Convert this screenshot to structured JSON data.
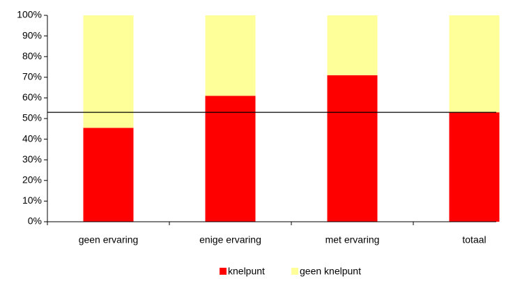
{
  "chart_data": {
    "type": "stacked_bar",
    "categories": [
      "geen ervaring",
      "enige ervaring",
      "met ervaring",
      "totaal"
    ],
    "series": [
      {
        "name": "knelpunt",
        "color": "#ff0000",
        "values": [
          45.5,
          61,
          71,
          53
        ]
      },
      {
        "name": "geen knelpunt",
        "color": "#ffff99",
        "values": [
          54.5,
          39,
          29,
          47
        ]
      }
    ],
    "reference_line": 53,
    "ylim": [
      0,
      100
    ],
    "yticks": [
      {
        "value": 0,
        "label": "0%"
      },
      {
        "value": 10,
        "label": "10%"
      },
      {
        "value": 20,
        "label": "20%"
      },
      {
        "value": 30,
        "label": "30%"
      },
      {
        "value": 40,
        "label": "40%"
      },
      {
        "value": 50,
        "label": "50%"
      },
      {
        "value": 60,
        "label": "60%"
      },
      {
        "value": 70,
        "label": "70%"
      },
      {
        "value": 80,
        "label": "80%"
      },
      {
        "value": 90,
        "label": "90%"
      },
      {
        "value": 100,
        "label": "100%"
      }
    ],
    "legend": "bottom"
  }
}
